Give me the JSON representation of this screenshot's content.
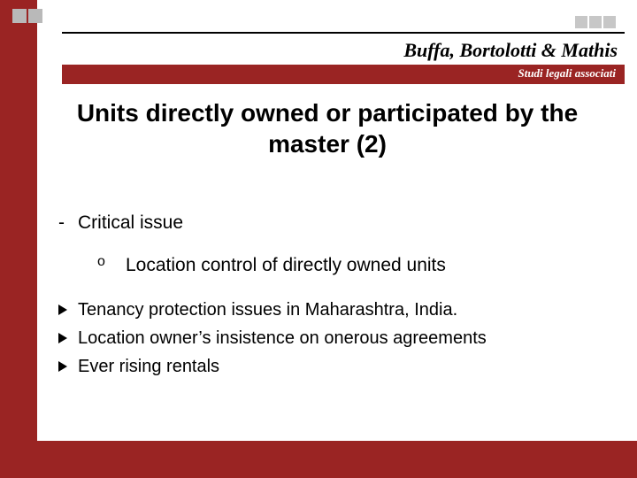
{
  "colors": {
    "bg_accent": "#9a2423",
    "logo_gray": "#b9b9b9",
    "logo_red": "#9a2423",
    "top_sq_gray": "#c7c7c7",
    "sub_bar": "#9a2423",
    "black": "#000000",
    "white": "#ffffff"
  },
  "header": {
    "firm_name": "Buffa, Bortolotti & Mathis",
    "subtitle": "Studi legali associati"
  },
  "title": "Units directly owned or participated by the master (2)",
  "list": {
    "dash": "Critical issue",
    "sub": "Location control of directly owned units",
    "bullets": [
      "Tenancy protection issues in Maharashtra, India.",
      "Location owner’s insistence on onerous agreements",
      "Ever rising rentals"
    ]
  }
}
